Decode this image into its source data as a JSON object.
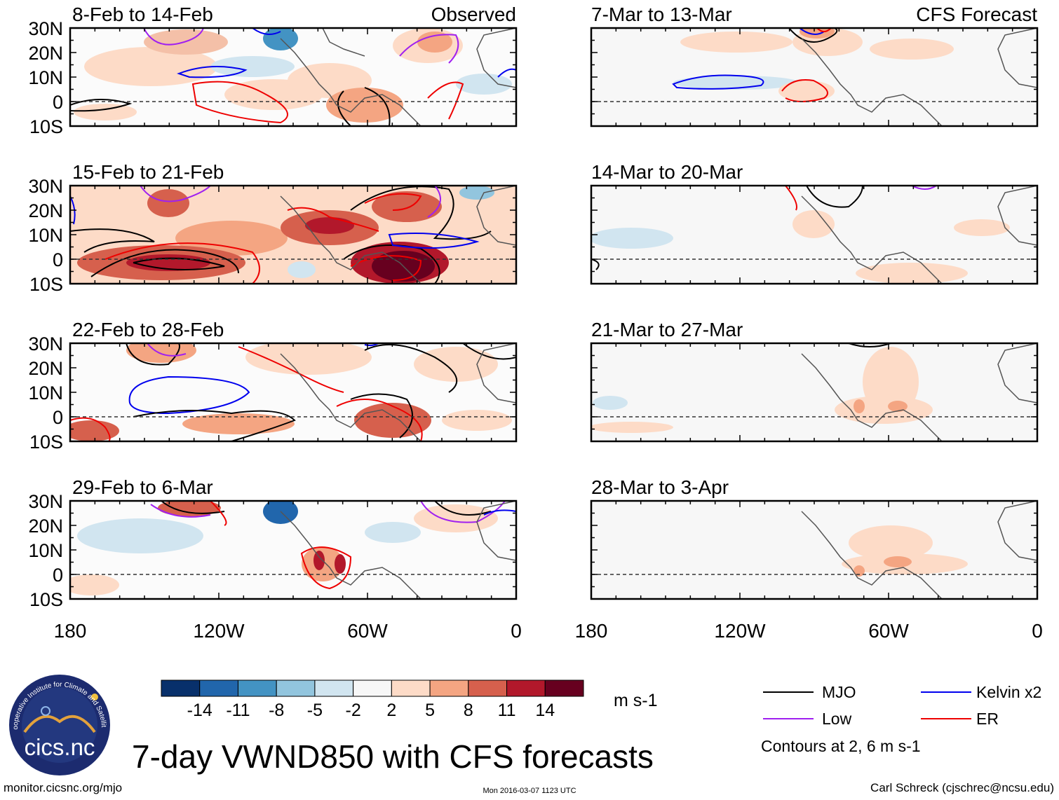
{
  "figure": {
    "title": "7-day VWND850 with CFS forecasts",
    "source_url": "monitor.cicsnc.org/mjo",
    "timestamp": "Mon 2016-03-07 1123 UTC",
    "author": "Carl Schreck (cjschrec@ncsu.edu)",
    "logo": {
      "text": "cics.nc",
      "ring_text": "Cooperative Institute for Climate and Satellites"
    }
  },
  "columns": [
    {
      "label": "Observed"
    },
    {
      "label": "CFS Forecast"
    }
  ],
  "panels": [
    {
      "period": "8-Feb to 14-Feb",
      "col": 0,
      "row": 0,
      "kind": "observed"
    },
    {
      "period": "15-Feb to 21-Feb",
      "col": 0,
      "row": 1,
      "kind": "observed"
    },
    {
      "period": "22-Feb to 28-Feb",
      "col": 0,
      "row": 2,
      "kind": "observed"
    },
    {
      "period": "29-Feb to 6-Mar",
      "col": 0,
      "row": 3,
      "kind": "observed"
    },
    {
      "period": "7-Mar to 13-Mar",
      "col": 1,
      "row": 0,
      "kind": "forecast"
    },
    {
      "period": "14-Mar to 20-Mar",
      "col": 1,
      "row": 1,
      "kind": "forecast"
    },
    {
      "period": "21-Mar to 27-Mar",
      "col": 1,
      "row": 2,
      "kind": "forecast"
    },
    {
      "period": "28-Mar to 3-Apr",
      "col": 1,
      "row": 3,
      "kind": "forecast"
    }
  ],
  "axes": {
    "lat_labels": [
      "30N",
      "20N",
      "10N",
      "0",
      "10S"
    ],
    "lon_labels": [
      "180",
      "120W",
      "60W",
      "0"
    ]
  },
  "colorbar": {
    "unit": "m s-1",
    "tick_labels": [
      "-14",
      "-11",
      "-8",
      "-5",
      "-2",
      "2",
      "5",
      "8",
      "11",
      "14"
    ],
    "colors": [
      "#08306b",
      "#2166ac",
      "#4393c3",
      "#92c5de",
      "#d1e5f0",
      "#f7f7f7",
      "#fddbc7",
      "#f4a582",
      "#d6604d",
      "#b2182b",
      "#67001f"
    ]
  },
  "legend": {
    "items": [
      {
        "label": "MJO",
        "color": "#000000"
      },
      {
        "label": "Kelvin x2",
        "color": "#0000ee"
      },
      {
        "label": "Low",
        "color": "#a020f0"
      },
      {
        "label": "ER",
        "color": "#ee0000"
      }
    ],
    "note": "Contours at 2, 6 m s-1"
  }
}
